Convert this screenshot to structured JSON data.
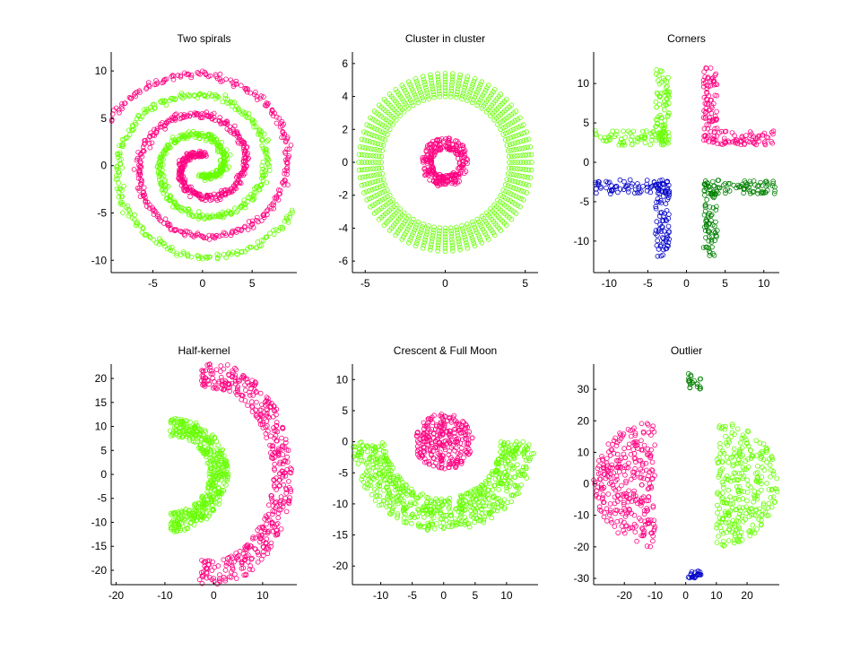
{
  "figure": {
    "background": "#ffffff"
  },
  "colors": {
    "magenta": "#ff0080",
    "green": "#66ff00",
    "blue": "#0000c8",
    "darkgreen": "#008000"
  },
  "chart_data": [
    {
      "type": "scatter",
      "title": "Two spirals",
      "xlabel": "",
      "ylabel": "",
      "xlim": [
        -9.2,
        9.5
      ],
      "ylim": [
        -11.3,
        12
      ],
      "xticks": [
        -5,
        0,
        5
      ],
      "yticks": [
        -10,
        -5,
        0,
        5,
        10
      ],
      "grid": false,
      "marker": "open circle",
      "generator": {
        "kind": "two_spirals",
        "n": 700,
        "t_range": [
          1.5,
          16.2
        ],
        "noise": 0.18,
        "colors": [
          "magenta",
          "green"
        ]
      }
    },
    {
      "type": "scatter",
      "title": "Cluster in cluster",
      "xlabel": "",
      "ylabel": "",
      "xlim": [
        -5.8,
        5.8
      ],
      "ylim": [
        -6.7,
        6.7
      ],
      "xticks": [
        -5,
        0,
        5
      ],
      "yticks": [
        -6,
        -4,
        -2,
        0,
        2,
        4,
        6
      ],
      "grid": false,
      "marker": "open circle",
      "generator": {
        "kind": "cluster_in_cluster",
        "outer_spokes": 72,
        "outer_r": [
          4.0,
          5.4
        ],
        "outer_points_per_spoke": 9,
        "inner_n": 260,
        "inner_r": [
          0.8,
          1.5
        ],
        "colors": [
          "green",
          "magenta"
        ]
      }
    },
    {
      "type": "scatter",
      "title": "Corners",
      "xlabel": "",
      "ylabel": "",
      "xlim": [
        -12,
        12
      ],
      "ylim": [
        -14,
        14
      ],
      "xticks": [
        -10,
        -5,
        0,
        5,
        10
      ],
      "yticks": [
        -10,
        -5,
        0,
        5,
        10
      ],
      "grid": false,
      "marker": "open circle",
      "generator": {
        "kind": "corners",
        "n_per_arm": 75,
        "colors": [
          "green",
          "magenta",
          "blue",
          "darkgreen"
        ]
      }
    },
    {
      "type": "scatter",
      "title": "Half-kernel",
      "xlabel": "",
      "ylabel": "",
      "xlim": [
        -21,
        17
      ],
      "ylim": [
        -23,
        23
      ],
      "xticks": [
        -20,
        -10,
        0,
        10
      ],
      "yticks": [
        -20,
        -15,
        -10,
        -5,
        0,
        5,
        10,
        15,
        20
      ],
      "grid": false,
      "marker": "open circle",
      "generator": {
        "kind": "half_kernel",
        "n": 450,
        "inner_r": [
          8,
          12
        ],
        "outer_r": [
          13,
          17
        ],
        "x_shift": -1,
        "colors": [
          "green",
          "magenta"
        ]
      }
    },
    {
      "type": "scatter",
      "title": "Crescent & Full Moon",
      "xlabel": "",
      "ylabel": "",
      "xlim": [
        -14.5,
        15
      ],
      "ylim": [
        -23,
        12.5
      ],
      "xticks": [
        -10,
        -5,
        0,
        5,
        10
      ],
      "yticks": [
        -20,
        -15,
        -10,
        -5,
        0,
        5,
        10
      ],
      "grid": false,
      "marker": "open circle",
      "generator": {
        "kind": "crescent_full_moon",
        "moon_n": 260,
        "moon_r": 4.6,
        "moon_center": [
          0,
          0
        ],
        "crescent_n": 650,
        "crescent_r": [
          9,
          14.5
        ],
        "crescent_center": [
          0,
          0
        ],
        "colors": [
          "magenta",
          "green"
        ]
      }
    },
    {
      "type": "scatter",
      "title": "Outlier",
      "xlabel": "",
      "ylabel": "",
      "xlim": [
        -30,
        30.5
      ],
      "ylim": [
        -32,
        38
      ],
      "xticks": [
        -20,
        -10,
        0,
        10,
        20
      ],
      "yticks": [
        -30,
        -20,
        -10,
        0,
        10,
        20,
        30
      ],
      "grid": false,
      "marker": "open circle",
      "generator": {
        "kind": "outlier",
        "left_n": 300,
        "right_n": 290,
        "top_n": 22,
        "bottom_n": 22,
        "colors": [
          "magenta",
          "green",
          "darkgreen",
          "blue"
        ]
      }
    }
  ]
}
